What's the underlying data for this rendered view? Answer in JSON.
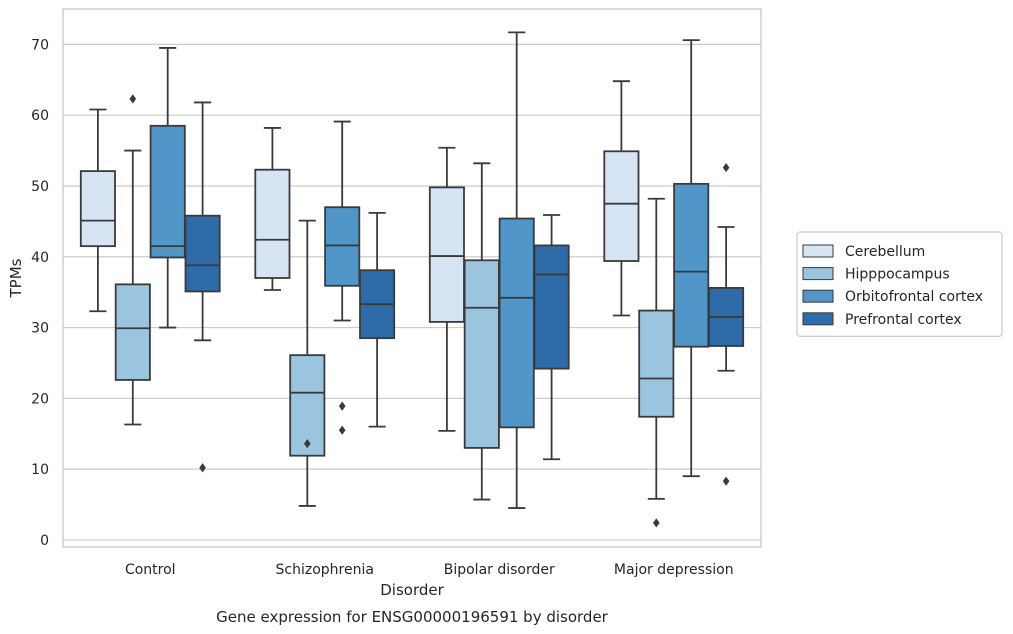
{
  "chart_data": {
    "type": "box",
    "caption": "Gene expression for ENSG00000196591 by disorder",
    "xlabel": "Disorder",
    "ylabel": "TPMs",
    "ylim": [
      -1,
      75
    ],
    "yticks": [
      0,
      10,
      20,
      30,
      40,
      50,
      60,
      70
    ],
    "grid": "horizontal",
    "legend_position": "right",
    "categories": [
      "Control",
      "Schizophrenia",
      "Bipolar disorder",
      "Major depression"
    ],
    "series": [
      {
        "name": "Cerebellum",
        "color": "#d6e4f4",
        "boxes": [
          {
            "whislo": 32.3,
            "q1": 41.5,
            "med": 45.1,
            "q3": 52.1,
            "whishi": 60.8,
            "fliers": []
          },
          {
            "whislo": 35.3,
            "q1": 37.0,
            "med": 42.4,
            "q3": 52.3,
            "whishi": 58.2,
            "fliers": []
          },
          {
            "whislo": 15.4,
            "q1": 30.8,
            "med": 40.1,
            "q3": 49.8,
            "whishi": 55.4,
            "fliers": []
          },
          {
            "whislo": 31.7,
            "q1": 39.4,
            "med": 47.5,
            "q3": 54.9,
            "whishi": 64.8,
            "fliers": []
          }
        ]
      },
      {
        "name": "Hipppocampus",
        "color": "#9bc5df",
        "boxes": [
          {
            "whislo": 16.3,
            "q1": 22.6,
            "med": 29.9,
            "q3": 36.1,
            "whishi": 55.0,
            "fliers": [
              62.3
            ]
          },
          {
            "whislo": 4.8,
            "q1": 11.9,
            "med": 20.8,
            "q3": 26.1,
            "whishi": 45.1,
            "fliers": [
              13.6
            ]
          },
          {
            "whislo": 5.7,
            "q1": 13.0,
            "med": 32.8,
            "q3": 39.5,
            "whishi": 53.2,
            "fliers": []
          },
          {
            "whislo": 5.8,
            "q1": 17.4,
            "med": 22.8,
            "q3": 32.4,
            "whishi": 48.2,
            "fliers": [
              2.4
            ]
          }
        ]
      },
      {
        "name": "Orbitofrontal cortex",
        "color": "#5096c9",
        "boxes": [
          {
            "whislo": 30.0,
            "q1": 39.9,
            "med": 41.5,
            "q3": 58.5,
            "whishi": 69.5,
            "fliers": []
          },
          {
            "whislo": 31.0,
            "q1": 35.9,
            "med": 41.6,
            "q3": 47.0,
            "whishi": 59.1,
            "fliers": [
              18.9,
              15.5
            ]
          },
          {
            "whislo": 4.5,
            "q1": 15.9,
            "med": 34.2,
            "q3": 45.4,
            "whishi": 71.7,
            "fliers": []
          },
          {
            "whislo": 9.0,
            "q1": 27.3,
            "med": 37.9,
            "q3": 50.3,
            "whishi": 70.6,
            "fliers": []
          }
        ]
      },
      {
        "name": "Prefrontal cortex",
        "color": "#2d6ca8",
        "boxes": [
          {
            "whislo": 28.2,
            "q1": 35.1,
            "med": 38.8,
            "q3": 45.8,
            "whishi": 61.8,
            "fliers": [
              10.2
            ]
          },
          {
            "whislo": 16.0,
            "q1": 28.5,
            "med": 33.3,
            "q3": 38.1,
            "whishi": 46.2,
            "fliers": []
          },
          {
            "whislo": 11.4,
            "q1": 24.2,
            "med": 37.5,
            "q3": 41.6,
            "whishi": 45.9,
            "fliers": []
          },
          {
            "whislo": 23.9,
            "q1": 27.4,
            "med": 31.5,
            "q3": 35.6,
            "whishi": 44.2,
            "fliers": [
              52.6,
              8.3
            ]
          }
        ]
      }
    ]
  }
}
